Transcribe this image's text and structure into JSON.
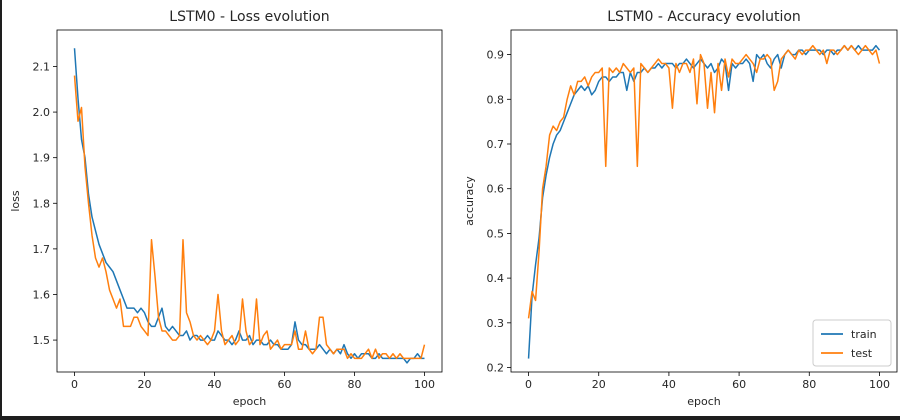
{
  "chart_data": [
    {
      "type": "line",
      "title": "LSTM0 - Loss evolution",
      "xlabel": "epoch",
      "ylabel": "loss",
      "xlim": [
        -5,
        105
      ],
      "ylim": [
        1.43,
        2.18
      ],
      "xticks": [
        0,
        20,
        40,
        60,
        80,
        100
      ],
      "yticks": [
        1.5,
        1.6,
        1.7,
        1.8,
        1.9,
        2.0,
        2.1
      ],
      "ytick_decimals": 1,
      "grid": false,
      "legend": null,
      "series": [
        {
          "color": "#1f77b4",
          "values": [
            2.14,
            2.03,
            1.94,
            1.9,
            1.82,
            1.77,
            1.74,
            1.71,
            1.69,
            1.67,
            1.66,
            1.65,
            1.63,
            1.61,
            1.59,
            1.57,
            1.57,
            1.57,
            1.56,
            1.57,
            1.56,
            1.54,
            1.53,
            1.53,
            1.55,
            1.57,
            1.53,
            1.52,
            1.53,
            1.52,
            1.51,
            1.51,
            1.52,
            1.5,
            1.51,
            1.51,
            1.5,
            1.5,
            1.51,
            1.5,
            1.5,
            1.52,
            1.51,
            1.5,
            1.5,
            1.49,
            1.5,
            1.52,
            1.5,
            1.5,
            1.51,
            1.49,
            1.5,
            1.5,
            1.49,
            1.49,
            1.5,
            1.49,
            1.49,
            1.48,
            1.48,
            1.48,
            1.49,
            1.54,
            1.5,
            1.49,
            1.49,
            1.48,
            1.48,
            1.48,
            1.49,
            1.48,
            1.47,
            1.48,
            1.47,
            1.48,
            1.47,
            1.49,
            1.47,
            1.46,
            1.47,
            1.46,
            1.47,
            1.47,
            1.47,
            1.46,
            1.46,
            1.47,
            1.46,
            1.46,
            1.46,
            1.46,
            1.46,
            1.46,
            1.46,
            1.45,
            1.46,
            1.46,
            1.47,
            1.46,
            1.46
          ]
        },
        {
          "color": "#ff7f0e",
          "values": [
            2.08,
            1.98,
            2.01,
            1.88,
            1.8,
            1.73,
            1.68,
            1.66,
            1.68,
            1.65,
            1.61,
            1.59,
            1.57,
            1.59,
            1.53,
            1.53,
            1.53,
            1.55,
            1.55,
            1.53,
            1.52,
            1.51,
            1.72,
            1.64,
            1.55,
            1.52,
            1.52,
            1.51,
            1.5,
            1.5,
            1.51,
            1.72,
            1.56,
            1.54,
            1.51,
            1.5,
            1.51,
            1.5,
            1.49,
            1.5,
            1.52,
            1.6,
            1.52,
            1.49,
            1.5,
            1.51,
            1.49,
            1.5,
            1.59,
            1.52,
            1.49,
            1.5,
            1.59,
            1.49,
            1.51,
            1.52,
            1.48,
            1.49,
            1.5,
            1.48,
            1.49,
            1.49,
            1.49,
            1.52,
            1.48,
            1.48,
            1.52,
            1.48,
            1.47,
            1.48,
            1.55,
            1.55,
            1.49,
            1.48,
            1.47,
            1.48,
            1.48,
            1.48,
            1.46,
            1.47,
            1.46,
            1.46,
            1.46,
            1.47,
            1.48,
            1.46,
            1.48,
            1.46,
            1.47,
            1.47,
            1.46,
            1.47,
            1.46,
            1.47,
            1.46,
            1.46,
            1.46,
            1.46,
            1.46,
            1.46,
            1.49
          ]
        }
      ]
    },
    {
      "type": "line",
      "title": "LSTM0 - Accuracy evolution",
      "xlabel": "epoch",
      "ylabel": "accuracy",
      "xlim": [
        -5,
        105
      ],
      "ylim": [
        0.19,
        0.955
      ],
      "xticks": [
        0,
        20,
        40,
        60,
        80,
        100
      ],
      "yticks": [
        0.2,
        0.3,
        0.4,
        0.5,
        0.6,
        0.7,
        0.8,
        0.9
      ],
      "ytick_decimals": 1,
      "grid": false,
      "legend": {
        "placement": "lower-right",
        "entries": [
          "train",
          "test"
        ]
      },
      "series": [
        {
          "name": "train",
          "color": "#1f77b4",
          "values": [
            0.22,
            0.36,
            0.43,
            0.49,
            0.58,
            0.63,
            0.67,
            0.7,
            0.72,
            0.73,
            0.75,
            0.77,
            0.79,
            0.81,
            0.82,
            0.83,
            0.82,
            0.83,
            0.81,
            0.82,
            0.84,
            0.85,
            0.85,
            0.84,
            0.85,
            0.85,
            0.86,
            0.86,
            0.82,
            0.86,
            0.84,
            0.86,
            0.86,
            0.87,
            0.86,
            0.87,
            0.87,
            0.88,
            0.87,
            0.88,
            0.88,
            0.88,
            0.87,
            0.88,
            0.88,
            0.89,
            0.88,
            0.87,
            0.88,
            0.89,
            0.88,
            0.87,
            0.88,
            0.86,
            0.87,
            0.89,
            0.88,
            0.82,
            0.88,
            0.87,
            0.88,
            0.88,
            0.89,
            0.88,
            0.84,
            0.9,
            0.89,
            0.9,
            0.88,
            0.87,
            0.89,
            0.9,
            0.87,
            0.9,
            0.91,
            0.9,
            0.9,
            0.91,
            0.91,
            0.9,
            0.91,
            0.91,
            0.91,
            0.91,
            0.9,
            0.91,
            0.91,
            0.9,
            0.91,
            0.91,
            0.92,
            0.91,
            0.92,
            0.91,
            0.92,
            0.91,
            0.91,
            0.91,
            0.91,
            0.92,
            0.91
          ]
        },
        {
          "name": "test",
          "color": "#ff7f0e",
          "values": [
            0.31,
            0.37,
            0.35,
            0.46,
            0.6,
            0.65,
            0.72,
            0.74,
            0.73,
            0.75,
            0.76,
            0.8,
            0.83,
            0.81,
            0.84,
            0.84,
            0.85,
            0.83,
            0.85,
            0.86,
            0.86,
            0.87,
            0.65,
            0.87,
            0.86,
            0.87,
            0.86,
            0.88,
            0.87,
            0.86,
            0.87,
            0.65,
            0.88,
            0.87,
            0.86,
            0.87,
            0.88,
            0.89,
            0.88,
            0.88,
            0.87,
            0.78,
            0.88,
            0.86,
            0.88,
            0.88,
            0.86,
            0.89,
            0.79,
            0.9,
            0.88,
            0.78,
            0.86,
            0.77,
            0.88,
            0.82,
            0.89,
            0.85,
            0.89,
            0.88,
            0.88,
            0.89,
            0.9,
            0.89,
            0.88,
            0.86,
            0.89,
            0.89,
            0.9,
            0.89,
            0.82,
            0.84,
            0.89,
            0.9,
            0.91,
            0.9,
            0.89,
            0.91,
            0.9,
            0.91,
            0.91,
            0.92,
            0.91,
            0.9,
            0.91,
            0.88,
            0.91,
            0.91,
            0.9,
            0.91,
            0.92,
            0.91,
            0.92,
            0.91,
            0.9,
            0.91,
            0.92,
            0.91,
            0.9,
            0.91,
            0.88
          ]
        }
      ]
    }
  ]
}
